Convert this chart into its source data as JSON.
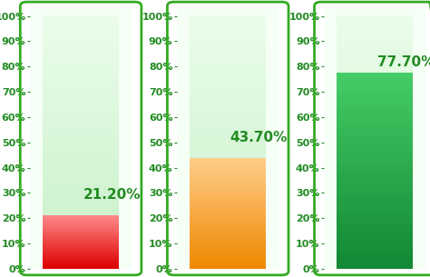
{
  "charts": [
    {
      "value": 21.2,
      "label": "21.20%",
      "fill_color_top": "#ff8888",
      "fill_color_bottom": "#dd0000"
    },
    {
      "value": 43.7,
      "label": "43.70%",
      "fill_color_top": "#ffcc88",
      "fill_color_bottom": "#ee8800"
    },
    {
      "value": 77.7,
      "label": "77.70%",
      "fill_color_top": "#44cc66",
      "fill_color_bottom": "#118833"
    }
  ],
  "bg_bar_top": "#eafcea",
  "bg_bar_bottom": "#c8f0c8",
  "container_facecolor": "#f5fff5",
  "container_edgecolor": "#33aa22",
  "container_linewidth": 2.0,
  "yticks": [
    0,
    10,
    20,
    30,
    40,
    50,
    60,
    70,
    80,
    90,
    100
  ],
  "tick_color": "#228B22",
  "label_color": "#228B22",
  "label_fontsize": 11,
  "tick_fontsize": 8,
  "ylim_max": 103,
  "fig_bg": "#ffffff"
}
